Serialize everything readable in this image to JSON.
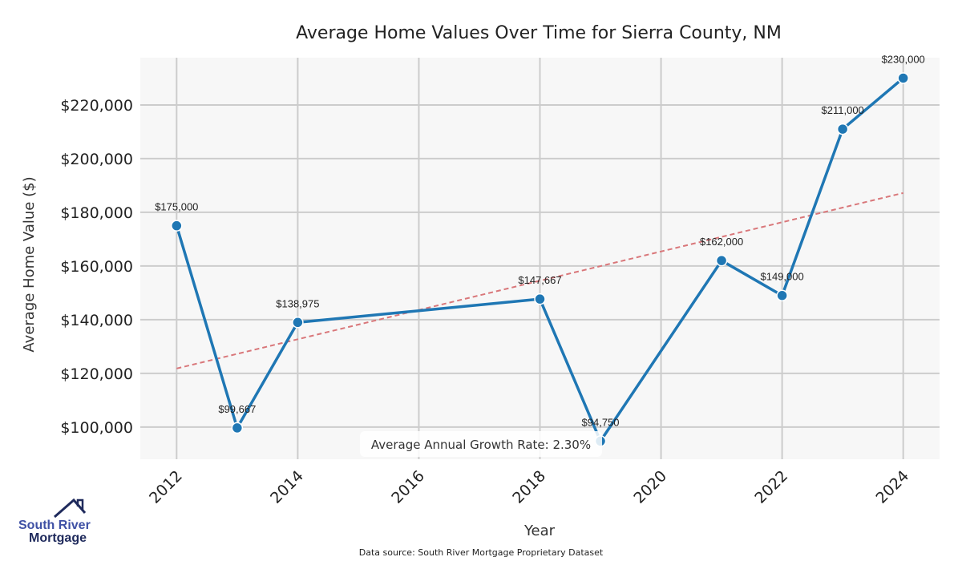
{
  "chart_data": {
    "type": "line",
    "title": "Average Home Values Over Time for Sierra County, NM",
    "xlabel": "Year",
    "ylabel": "Average Home Value ($)",
    "x": [
      2012,
      2013,
      2014,
      2018,
      2019,
      2021,
      2022,
      2023,
      2024
    ],
    "values": [
      175000,
      99667,
      138975,
      147667,
      94750,
      162000,
      149000,
      211000,
      230000
    ],
    "data_labels": [
      "$175,000",
      "$99,667",
      "$138,975",
      "$147,667",
      "$94,750",
      "$162,000",
      "$149,000",
      "$211,000",
      "$230,000"
    ],
    "trend": {
      "x": [
        2012,
        2024
      ],
      "y": [
        121800,
        187200
      ]
    },
    "xticks": [
      "2012",
      "2014",
      "2016",
      "2018",
      "2020",
      "2022",
      "2024"
    ],
    "yticks": [
      "$100,000",
      "$120,000",
      "$140,000",
      "$160,000",
      "$180,000",
      "$200,000",
      "$220,000"
    ],
    "ytick_values": [
      100000,
      120000,
      140000,
      160000,
      180000,
      200000,
      220000
    ],
    "xlim": [
      2011.4,
      2024.6
    ],
    "ylim": [
      88000,
      237600
    ],
    "grid": true,
    "colors": {
      "line": "#1f77b4",
      "trend": "#d9777a",
      "plot_bg": "#f7f7f7",
      "grid": "#cccccc"
    }
  },
  "annotation": "Average Annual Growth Rate: 2.30%",
  "source": "Data source: South River Mortgage Proprietary Dataset",
  "logo": {
    "line1": "South River",
    "line2": "Mortgage"
  }
}
